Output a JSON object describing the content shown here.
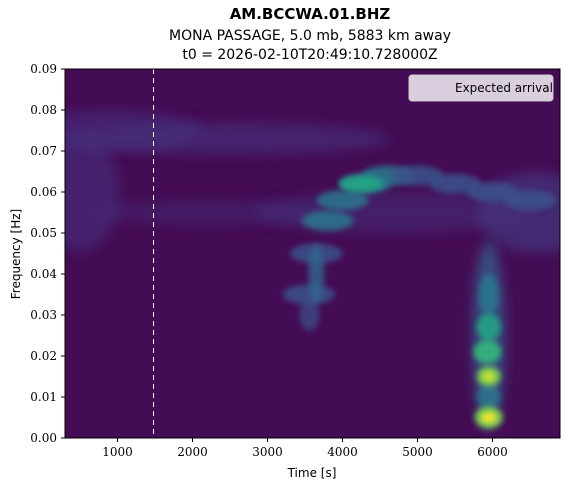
{
  "chart_data": {
    "type": "heatmap",
    "title": "AM.BCCWA.01.BHZ",
    "subtitle_line1": "MONA PASSAGE, 5.0 mb, 5883 km away",
    "subtitle_line2": "t0 = 2026-02-10T20:49:10.728000Z",
    "xlabel": "Time [s]",
    "ylabel": "Frequency [Hz]",
    "xlim": [
      300,
      6900
    ],
    "ylim": [
      0.0,
      0.09
    ],
    "x_ticks": [
      1000,
      2000,
      3000,
      4000,
      5000,
      6000
    ],
    "x_tick_labels": [
      "1000",
      "2000",
      "3000",
      "4000",
      "5000",
      "6000"
    ],
    "y_ticks": [
      0.0,
      0.01,
      0.02,
      0.03,
      0.04,
      0.05,
      0.06,
      0.07,
      0.08,
      0.09
    ],
    "y_tick_labels": [
      "0.00",
      "0.01",
      "0.02",
      "0.03",
      "0.04",
      "0.05",
      "0.06",
      "0.07",
      "0.08",
      "0.09"
    ],
    "colormap": "viridis",
    "expected_arrival": {
      "time": 1480,
      "label": "Expected arrival",
      "color": "#ffffff",
      "style": "dashed"
    },
    "legend_placement": "top-right",
    "energy_features": [
      {
        "desc": "fundamental mode dispersion arc",
        "points": [
          [
            3550,
            0.035
          ],
          [
            3650,
            0.045
          ],
          [
            3800,
            0.053
          ],
          [
            4000,
            0.058
          ],
          [
            4300,
            0.062
          ],
          [
            4600,
            0.064
          ],
          [
            5000,
            0.064
          ],
          [
            5500,
            0.062
          ],
          [
            6000,
            0.06
          ],
          [
            6500,
            0.058
          ]
        ]
      },
      {
        "desc": "late long-period energy column",
        "time": 5950,
        "freq_range": [
          0.0,
          0.045
        ]
      },
      {
        "desc": "peak energy",
        "time": 5950,
        "freq": 0.005
      },
      {
        "desc": "secondary energy peak",
        "time": 5950,
        "freq": 0.015
      }
    ]
  }
}
